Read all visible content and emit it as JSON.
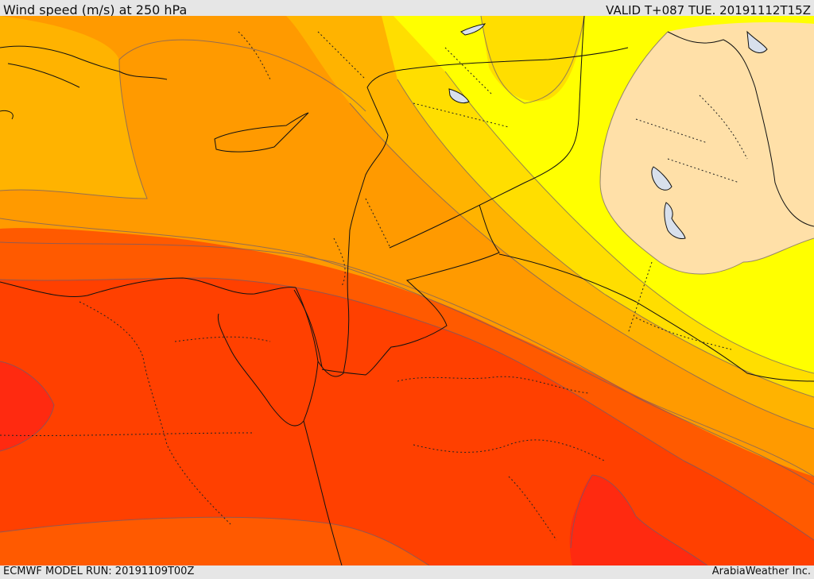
{
  "header": {
    "title": "Wind speed (m/s) at 250 hPa",
    "valid": "VALID T+087 TUE. 20191112T15Z"
  },
  "footer": {
    "model_run": "ECMWF MODEL RUN: 20191109T00Z",
    "credit": "ArabiaWeather Inc."
  },
  "colors": {
    "very_high": "#ff2a10",
    "high": "#ff4000",
    "upper_mid": "#ff5a00",
    "mid": "#ff9a00",
    "lower_mid": "#ffb300",
    "low": "#ffde00",
    "very_low": "#ffff00",
    "minimal": "#ffe0a8",
    "lake": "#d8e0ec"
  }
}
